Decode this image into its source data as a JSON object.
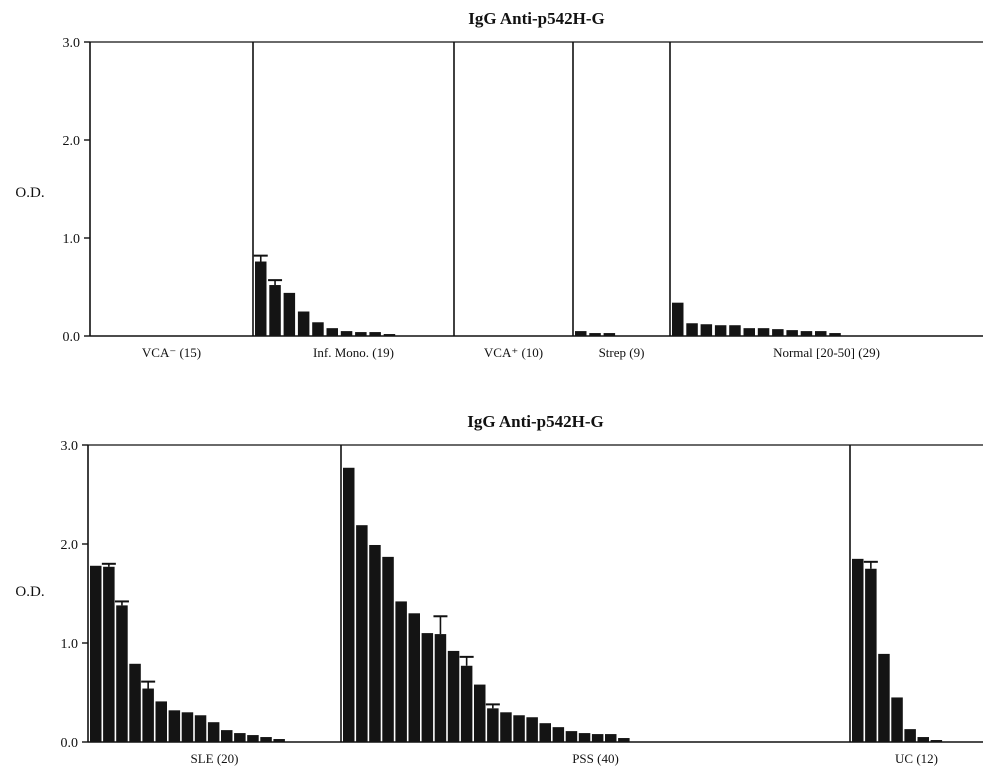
{
  "chart_data": [
    {
      "type": "bar",
      "title": "IgG Anti-p542H-G",
      "ylabel": "O.D.",
      "ylim": [
        0,
        3.0
      ],
      "yticks": [
        "0.0",
        "1.0",
        "2.0",
        "3.0"
      ],
      "groups": [
        {
          "label": "VCA⁻  (15)",
          "values": []
        },
        {
          "label": "Inf. Mono. (19)",
          "values": [
            0.76,
            0.52,
            0.44,
            0.25,
            0.14,
            0.08,
            0.05,
            0.04,
            0.04,
            0.02
          ],
          "error_tops": [
            0.82,
            0.57,
            null,
            null,
            null,
            null,
            null,
            null,
            null,
            null
          ]
        },
        {
          "label": "VCA⁺  (10)",
          "values": []
        },
        {
          "label": "Strep (9)",
          "values": [
            0.05,
            0.03,
            0.03
          ]
        },
        {
          "label": "Normal [20-50] (29)",
          "values": [
            0.34,
            0.13,
            0.12,
            0.11,
            0.11,
            0.08,
            0.08,
            0.07,
            0.06,
            0.05,
            0.05,
            0.03
          ]
        }
      ]
    },
    {
      "type": "bar",
      "title": "IgG Anti-p542H-G",
      "ylabel": "O.D.",
      "ylim": [
        0,
        3.0
      ],
      "yticks": [
        "0.0",
        "1.0",
        "2.0",
        "3.0"
      ],
      "groups": [
        {
          "label": "SLE (20)",
          "values": [
            1.78,
            1.77,
            1.38,
            0.79,
            0.54,
            0.41,
            0.32,
            0.3,
            0.27,
            0.2,
            0.12,
            0.09,
            0.07,
            0.05,
            0.03
          ],
          "error_tops": [
            null,
            1.8,
            1.42,
            null,
            0.61,
            null,
            null,
            null,
            null,
            null,
            null,
            null,
            null,
            null,
            null
          ]
        },
        {
          "label": "PSS (40)",
          "values": [
            2.77,
            2.19,
            1.99,
            1.87,
            1.42,
            1.3,
            1.1,
            1.09,
            0.92,
            0.77,
            0.58,
            0.34,
            0.3,
            0.27,
            0.25,
            0.19,
            0.15,
            0.11,
            0.09,
            0.08,
            0.08,
            0.04
          ],
          "error_tops": [
            null,
            null,
            null,
            null,
            null,
            null,
            null,
            1.27,
            null,
            0.86,
            null,
            0.38,
            null,
            null,
            null,
            null,
            null,
            null,
            null,
            null,
            null,
            null
          ]
        },
        {
          "label": "UC (12)",
          "values": [
            1.85,
            1.75,
            0.89,
            0.45,
            0.13,
            0.05,
            0.02
          ],
          "error_tops": [
            null,
            1.82,
            null,
            null,
            null,
            null,
            null
          ]
        }
      ]
    }
  ]
}
